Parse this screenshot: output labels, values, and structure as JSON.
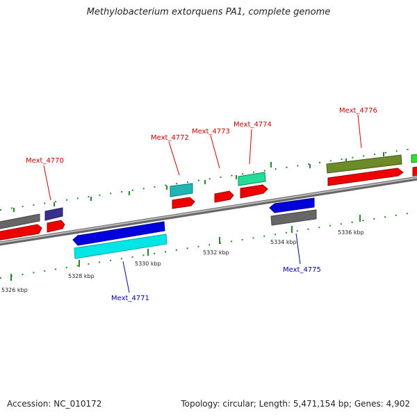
{
  "header": {
    "title": "Methylobacterium extorquens PA1, complete genome"
  },
  "footer": {
    "accession": "Accession: NC_010172",
    "summary": "Topology: circular; Length: 5,471,154 bp; Genes: 4,902"
  },
  "map": {
    "axis_labels": [
      "5326 kbp",
      "5328 kbp",
      "5330 kbp",
      "5332 kbp",
      "5334 kbp",
      "5336 kbp"
    ],
    "gene_labels": [
      {
        "name": "Mext_4770",
        "strand": "forward",
        "color": "#cc0000"
      },
      {
        "name": "Mext_4771",
        "strand": "reverse",
        "color": "#0000aa"
      },
      {
        "name": "Mext_4772",
        "strand": "forward",
        "color": "#cc0000"
      },
      {
        "name": "Mext_4773",
        "strand": "forward",
        "color": "#cc0000"
      },
      {
        "name": "Mext_4774",
        "strand": "forward",
        "color": "#cc0000"
      },
      {
        "name": "Mext_4775",
        "strand": "reverse",
        "color": "#0000aa"
      },
      {
        "name": "Mext_4776",
        "strand": "forward",
        "color": "#cc0000"
      }
    ],
    "colors": {
      "backbone": "#888888",
      "tick": "#228822",
      "cds_forward": "#ee0000",
      "cds_reverse": "#0000dd",
      "feature_gray": "#666666",
      "feature_navy": "#3a2f8a",
      "feature_teal": "#1fb5b5",
      "feature_mint": "#22dd99",
      "feature_olive": "#6e8b2a",
      "feature_cyan": "#00e5e5",
      "feature_green": "#33dd33"
    }
  }
}
